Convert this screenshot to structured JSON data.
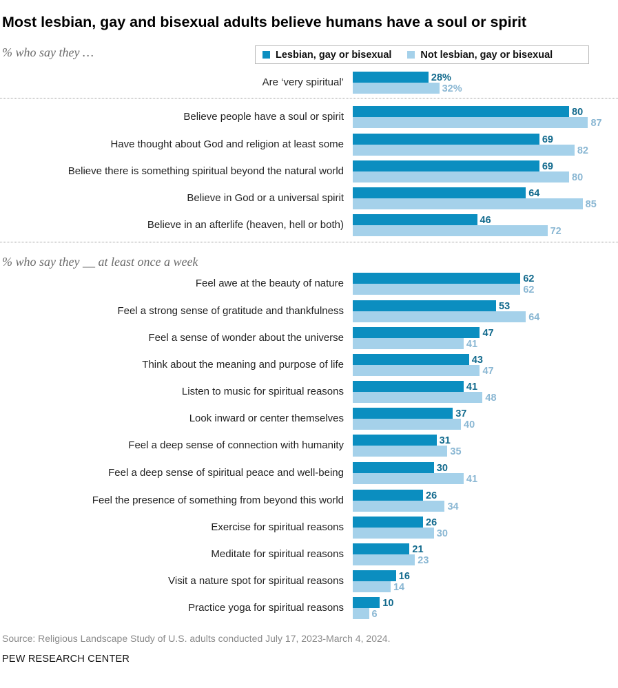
{
  "title": "Most lesbian, gay and bisexual adults believe humans have a soul or spirit",
  "subtitles": [
    "% who say they …",
    "% who say they __ at least once a week"
  ],
  "legend": [
    "Lesbian, gay or bisexual",
    "Not lesbian, gay or bisexual"
  ],
  "colors": {
    "lgb": "#0b8ec0",
    "not_lgb": "#a5d1ea",
    "lgb_text": "#126a8d",
    "not_lgb_text": "#8ab7d3"
  },
  "source": "Source: Religious Landscape Study of U.S. adults conducted July 17, 2023-March 4, 2024.",
  "credit": "PEW RESEARCH CENTER",
  "chart_data": {
    "type": "bar",
    "orientation": "horizontal",
    "xlim": [
      0,
      100
    ],
    "series": [
      {
        "name": "Lesbian, gay or bisexual",
        "values": [
          28,
          80,
          69,
          69,
          64,
          46,
          62,
          53,
          47,
          43,
          41,
          37,
          31,
          30,
          26,
          26,
          21,
          16,
          10
        ]
      },
      {
        "name": "Not lesbian, gay or bisexual",
        "values": [
          32,
          87,
          82,
          80,
          85,
          72,
          62,
          64,
          41,
          47,
          48,
          40,
          35,
          41,
          34,
          30,
          23,
          14,
          6
        ]
      }
    ],
    "categories": [
      "Are ‘very spiritual’",
      "Believe people have a soul or spirit",
      "Have thought about God and religion at least some",
      "Believe there is something spiritual beyond the natural world",
      "Believe in God or a universal spirit",
      "Believe in an afterlife (heaven, hell or both)",
      "Feel awe at the beauty of nature",
      "Feel a strong sense of gratitude and thankfulness",
      "Feel a sense of wonder about the universe",
      "Think about the meaning and purpose of life",
      "Listen to music for spiritual reasons",
      "Look inward or center themselves",
      "Feel a deep sense of connection with humanity",
      "Feel a deep sense of spiritual peace and well-being",
      "Feel the presence of something from beyond this world",
      "Exercise for spiritual reasons",
      "Meditate for spiritual reasons",
      "Visit a nature spot for spiritual reasons",
      "Practice yoga for spiritual reasons"
    ],
    "value_labels": [
      [
        "28%",
        "32%"
      ],
      [
        "80",
        "87"
      ],
      [
        "69",
        "82"
      ],
      [
        "69",
        "80"
      ],
      [
        "64",
        "85"
      ],
      [
        "46",
        "72"
      ],
      [
        "62",
        "62"
      ],
      [
        "53",
        "64"
      ],
      [
        "47",
        "41"
      ],
      [
        "43",
        "47"
      ],
      [
        "41",
        "48"
      ],
      [
        "37",
        "40"
      ],
      [
        "31",
        "35"
      ],
      [
        "30",
        "41"
      ],
      [
        "26",
        "34"
      ],
      [
        "26",
        "30"
      ],
      [
        "21",
        "23"
      ],
      [
        "16",
        "14"
      ],
      [
        "10",
        "6"
      ]
    ]
  }
}
